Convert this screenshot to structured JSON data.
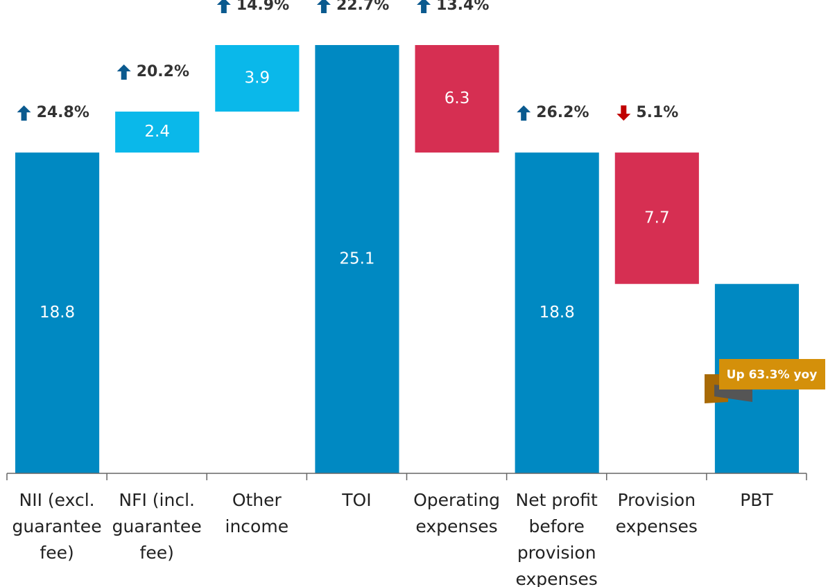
{
  "chart_data": {
    "type": "waterfall",
    "categories": [
      "NII (excl. guarantee fee)",
      "NFI (incl. guarantee fee)",
      "Other income",
      "TOI",
      "Operating expenses",
      "Net profit before provision expenses",
      "Provision expenses",
      "PBT"
    ],
    "values": [
      18.8,
      2.4,
      3.9,
      25.1,
      6.3,
      18.8,
      7.7,
      11.1
    ],
    "kinds": [
      "total",
      "increase",
      "increase",
      "total",
      "decrease",
      "total",
      "decrease",
      "total"
    ],
    "colors": {
      "total": "#0089c2",
      "increase": "#0ab8ea",
      "decrease": "#d62f52"
    },
    "changes": [
      24.8,
      20.2,
      14.9,
      22.7,
      13.4,
      26.2,
      -5.1,
      null
    ],
    "change_labels": [
      "24.8%",
      "20.2%",
      "14.9%",
      "22.7%",
      "13.4%",
      "26.2%",
      "5.1%",
      null
    ],
    "annotation": "Up 63.3% yoy"
  }
}
